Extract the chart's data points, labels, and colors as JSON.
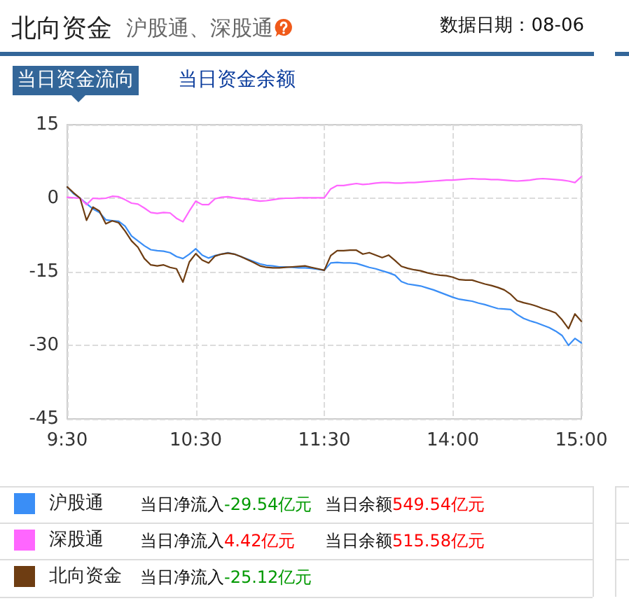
{
  "chart_data": {
    "type": "line",
    "title": "北向资金",
    "subtitle": "沪股通、深股通",
    "annotations": [
      "数据日期：08-06",
      "当日资金流向",
      "当日资金余额",
      "当日净流入",
      "-29.54亿元",
      "当日净流入",
      "4.42亿元",
      "当日净流入",
      "-25.12亿元",
      "当日余额",
      "549.54亿元",
      "当日余额",
      "515.58亿元"
    ],
    "categories": [
      "9:30",
      null,
      null,
      null,
      null,
      null,
      null,
      null,
      null,
      null,
      null,
      null,
      null,
      null,
      null,
      null,
      null,
      null,
      null,
      null,
      "10:30",
      null,
      null,
      null,
      null,
      null,
      null,
      null,
      null,
      null,
      null,
      null,
      null,
      null,
      null,
      null,
      null,
      null,
      null,
      null,
      "11:30",
      null,
      null,
      null,
      null,
      null,
      null,
      null,
      null,
      null,
      null,
      null,
      null,
      null,
      null,
      null,
      null,
      null,
      null,
      null,
      "14:00",
      null,
      null,
      null,
      null,
      null,
      null,
      null,
      null,
      null,
      null,
      null,
      null,
      null,
      null,
      null,
      null,
      null,
      null,
      null,
      "15:00"
    ],
    "ylim": [
      -45,
      15
    ],
    "yticks": [
      -45,
      -30,
      -15,
      0,
      15
    ],
    "grid": true,
    "legend": "bottom",
    "marker": "none",
    "line_style": "solid",
    "series": [
      {
        "name": "沪股通",
        "color": "#3a8ef6",
        "values": [
          2.3,
          0.9,
          0.0,
          -1.1,
          -2.2,
          -2.9,
          -4.4,
          -4.6,
          -4.7,
          -5.7,
          -7.7,
          -8.7,
          -9.7,
          -10.5,
          -10.7,
          -10.8,
          -11.1,
          -11.9,
          -12.3,
          -11.4,
          -10.3,
          -11.6,
          -12.2,
          -11.7,
          -11.4,
          -11.1,
          -11.4,
          -11.9,
          -12.4,
          -12.9,
          -13.4,
          -13.7,
          -13.8,
          -14.0,
          -14.0,
          -14.1,
          -14.2,
          -14.2,
          -14.3,
          -14.5,
          -14.7,
          -13.2,
          -13.1,
          -13.2,
          -13.2,
          -13.3,
          -13.7,
          -14.1,
          -14.4,
          -14.8,
          -15.2,
          -15.7,
          -17.0,
          -17.5,
          -17.7,
          -17.9,
          -18.3,
          -18.7,
          -19.2,
          -19.7,
          -20.2,
          -20.6,
          -20.8,
          -21.0,
          -21.4,
          -21.7,
          -22.1,
          -22.5,
          -22.6,
          -22.7,
          -23.7,
          -24.5,
          -25.0,
          -25.4,
          -25.9,
          -26.4,
          -27.1,
          -28.0,
          -30.0,
          -28.6,
          -29.5
        ]
      },
      {
        "name": "深股通",
        "color": "#ff66ff",
        "values": [
          0.2,
          0.1,
          0.0,
          -1.3,
          0.0,
          -0.1,
          0.0,
          0.4,
          0.3,
          -0.3,
          -1.0,
          -1.2,
          -2.0,
          -2.9,
          -3.1,
          -2.9,
          -3.0,
          -4.1,
          -4.8,
          -2.6,
          -0.6,
          -1.3,
          -1.3,
          -0.1,
          0.2,
          0.3,
          0.1,
          -0.1,
          -0.2,
          -0.4,
          -0.6,
          -0.5,
          -0.3,
          -0.1,
          0.0,
          0.0,
          0.1,
          0.1,
          0.1,
          0.1,
          0.1,
          1.9,
          2.6,
          2.6,
          2.8,
          3.0,
          2.8,
          2.9,
          3.1,
          3.2,
          3.2,
          3.1,
          3.1,
          3.2,
          3.2,
          3.3,
          3.4,
          3.5,
          3.6,
          3.7,
          3.7,
          3.8,
          3.9,
          4.0,
          3.9,
          3.9,
          3.8,
          3.8,
          3.7,
          3.6,
          3.5,
          3.6,
          3.7,
          3.9,
          4.0,
          3.9,
          3.8,
          3.7,
          3.5,
          3.2,
          4.4
        ]
      },
      {
        "name": "北向资金",
        "color": "#6e3d12",
        "values": [
          2.3,
          1.1,
          0.0,
          -4.5,
          -1.8,
          -2.6,
          -5.2,
          -4.6,
          -5.0,
          -6.7,
          -8.7,
          -10.0,
          -12.3,
          -13.6,
          -13.8,
          -13.6,
          -14.1,
          -14.4,
          -17.1,
          -13.0,
          -11.3,
          -12.6,
          -13.2,
          -11.8,
          -11.4,
          -11.2,
          -11.4,
          -11.9,
          -12.5,
          -13.1,
          -13.8,
          -14.1,
          -14.2,
          -14.2,
          -14.1,
          -14.0,
          -13.9,
          -13.8,
          -14.1,
          -14.4,
          -14.7,
          -11.7,
          -10.7,
          -10.7,
          -10.6,
          -10.6,
          -11.4,
          -11.1,
          -11.6,
          -12.1,
          -11.6,
          -12.7,
          -13.9,
          -14.3,
          -14.6,
          -14.8,
          -15.2,
          -15.5,
          -15.7,
          -15.8,
          -16.1,
          -16.6,
          -16.7,
          -16.7,
          -17.1,
          -17.5,
          -17.8,
          -18.2,
          -18.7,
          -19.6,
          -20.9,
          -21.3,
          -21.6,
          -22.0,
          -22.5,
          -22.9,
          -23.4,
          -24.8,
          -26.6,
          -23.6,
          -25.1
        ]
      }
    ]
  }
}
